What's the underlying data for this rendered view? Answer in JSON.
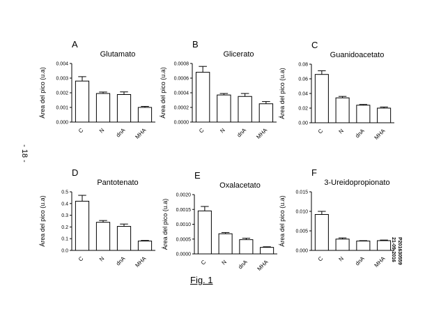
{
  "page": {
    "page_number": "- 18 -",
    "figure_caption": "Fig. 1",
    "side_note_lines": [
      "P201630559",
      "21-09-2016"
    ]
  },
  "chart_data": [
    {
      "type": "bar",
      "panel": "A",
      "title": "Glutamato",
      "ylabel": "Área del pico (u.a)",
      "categories": [
        "C",
        "N",
        "dnA",
        "MHA"
      ],
      "values": [
        0.0028,
        0.00195,
        0.00188,
        0.001
      ],
      "errors": [
        0.0003,
        0.0001,
        0.00018,
        7e-05
      ],
      "ylim": [
        0,
        0.004
      ],
      "yticks": [
        "0.000",
        "0.001",
        "0.002",
        "0.003",
        "0.004"
      ]
    },
    {
      "type": "bar",
      "panel": "B",
      "title": "Glicerato",
      "ylabel": "Área del pico (u.a)",
      "categories": [
        "C",
        "N",
        "dnA",
        "MHA"
      ],
      "values": [
        0.00068,
        0.00037,
        0.00035,
        0.00025
      ],
      "errors": [
        8e-05,
        2e-05,
        4e-05,
        3e-05
      ],
      "ylim": [
        0,
        0.0008
      ],
      "yticks": [
        "0.0000",
        "0.0002",
        "0.0004",
        "0.0006",
        "0.0008"
      ]
    },
    {
      "type": "bar",
      "panel": "C",
      "title": "Guanidoacetato",
      "ylabel": "Área del pico (u.a)",
      "categories": [
        "C",
        "N",
        "dnA",
        "MHA"
      ],
      "values": [
        0.066,
        0.034,
        0.024,
        0.02
      ],
      "errors": [
        0.005,
        0.002,
        0.001,
        0.0015
      ],
      "ylim": [
        0,
        0.08
      ],
      "yticks": [
        "0.00",
        "0.02",
        "0.04",
        "0.06",
        "0.08"
      ]
    },
    {
      "type": "bar",
      "panel": "D",
      "title": "Pantotenato",
      "ylabel": "Área del pico (u.a)",
      "categories": [
        "C",
        "N",
        "dnA",
        "MHA"
      ],
      "values": [
        0.42,
        0.24,
        0.205,
        0.08
      ],
      "errors": [
        0.05,
        0.015,
        0.02,
        0.005
      ],
      "ylim": [
        0,
        0.5
      ],
      "yticks": [
        "0.0",
        "0.1",
        "0.2",
        "0.3",
        "0.4",
        "0.5"
      ]
    },
    {
      "type": "bar",
      "panel": "E",
      "title": "Oxalacetato",
      "ylabel": "Área del pico (u.a)",
      "categories": [
        "C",
        "N",
        "dnA",
        "MHA"
      ],
      "values": [
        0.00145,
        0.00068,
        0.00048,
        0.00022
      ],
      "errors": [
        0.00015,
        4e-05,
        5e-05,
        2e-05
      ],
      "ylim": [
        0,
        0.002
      ],
      "yticks": [
        "0.0000",
        "0.0005",
        "0.0010",
        "0.0015",
        "0.0020"
      ]
    },
    {
      "type": "bar",
      "panel": "F",
      "title": "3-Ureidopropionato",
      "ylabel": "Área del pico (u.a)",
      "categories": [
        "C",
        "N",
        "dnA",
        "MHA"
      ],
      "values": [
        0.0092,
        0.0029,
        0.0024,
        0.0025
      ],
      "errors": [
        0.0008,
        0.0003,
        0.0001,
        0.00015
      ],
      "ylim": [
        0,
        0.015
      ],
      "yticks": [
        "0.000",
        "0.005",
        "0.010",
        "0.015"
      ]
    }
  ]
}
